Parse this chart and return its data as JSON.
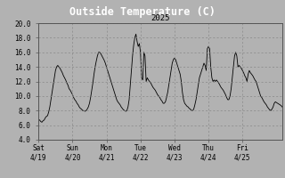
{
  "title": "Outside Temperature (C)",
  "subtitle": "2025",
  "ylim": [
    4.0,
    20.0
  ],
  "yticks": [
    4.0,
    6.0,
    8.0,
    10.0,
    12.0,
    14.0,
    16.0,
    18.0,
    20.0
  ],
  "background_color": "#b2b2b2",
  "title_bg_color": "#000000",
  "title_color": "#ffffff",
  "line_color": "#000000",
  "grid_color": "#888888",
  "subtitle_color": "#000000",
  "days": [
    "Sat\n4/19",
    "Sun\n4/20",
    "Mon\n4/21",
    "Tue\n4/22",
    "Wed\n4/23",
    "Thu\n4/24",
    "Fri\n4/25"
  ],
  "num_days": 7,
  "title_fontsize": 8.5,
  "subtitle_fontsize": 6.5,
  "tick_fontsize": 5.5,
  "data": [
    6.8,
    6.7,
    6.5,
    6.4,
    6.6,
    6.7,
    7.0,
    7.2,
    7.3,
    7.8,
    8.5,
    9.5,
    10.5,
    11.5,
    12.5,
    13.5,
    14.0,
    14.2,
    14.0,
    13.8,
    13.5,
    13.2,
    12.8,
    12.5,
    12.2,
    11.8,
    11.5,
    11.0,
    10.8,
    10.5,
    10.2,
    9.8,
    9.5,
    9.3,
    9.0,
    8.8,
    8.5,
    8.3,
    8.2,
    8.0,
    8.0,
    7.9,
    8.0,
    8.2,
    8.5,
    9.0,
    9.8,
    10.8,
    11.8,
    13.0,
    14.0,
    14.8,
    15.5,
    16.0,
    16.0,
    15.8,
    15.5,
    15.2,
    14.9,
    14.5,
    14.0,
    13.5,
    13.0,
    12.5,
    12.0,
    11.5,
    11.0,
    10.5,
    10.0,
    9.5,
    9.2,
    9.0,
    8.8,
    8.5,
    8.3,
    8.1,
    8.0,
    7.9,
    8.0,
    8.5,
    9.5,
    11.5,
    13.5,
    15.5,
    17.0,
    18.0,
    18.5,
    17.5,
    16.8,
    17.2,
    16.0,
    12.5,
    12.2,
    16.0,
    15.5,
    12.0,
    12.5,
    12.2,
    12.0,
    11.8,
    11.5,
    11.2,
    11.0,
    10.8,
    10.5,
    10.2,
    10.0,
    9.8,
    9.5,
    9.3,
    9.0,
    9.0,
    9.2,
    9.8,
    10.5,
    11.5,
    12.5,
    13.5,
    14.5,
    15.0,
    15.2,
    15.0,
    14.5,
    14.0,
    13.5,
    13.0,
    12.0,
    10.5,
    9.5,
    9.0,
    8.8,
    8.6,
    8.5,
    8.3,
    8.2,
    8.0,
    8.0,
    8.2,
    8.8,
    9.5,
    10.5,
    11.5,
    12.5,
    13.0,
    13.5,
    14.0,
    14.5,
    14.2,
    13.5,
    16.5,
    16.8,
    16.5,
    14.0,
    12.5,
    12.0,
    12.2,
    12.0,
    12.2,
    12.0,
    11.8,
    11.5,
    11.2,
    11.0,
    10.8,
    10.5,
    10.2,
    9.8,
    9.5,
    9.5,
    10.0,
    11.0,
    12.5,
    14.0,
    15.5,
    16.0,
    15.5,
    14.0,
    14.2,
    14.0,
    13.8,
    13.5,
    13.2,
    12.8,
    12.5,
    12.0,
    13.0,
    13.5,
    13.2,
    13.0,
    12.8,
    12.5,
    12.2,
    12.0,
    11.5,
    11.0,
    10.5,
    10.0,
    9.8,
    9.5,
    9.2,
    9.0,
    8.8,
    8.5,
    8.3,
    8.1,
    8.0,
    8.2,
    8.5,
    9.0,
    9.2,
    9.1,
    9.0,
    8.9,
    8.8,
    8.7,
    8.5
  ]
}
